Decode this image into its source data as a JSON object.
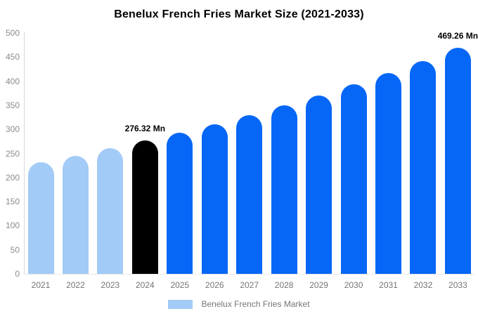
{
  "title": "Benelux French Fries Market Size (2021-2033)",
  "legend": {
    "label": "Benelux French Fries Market",
    "swatch_color": "#a3cbf7"
  },
  "colors": {
    "past_bars": "#a3cbf7",
    "highlight_bar": "#000000",
    "forecast_bars": "#0667f6",
    "axis_text": "#8c8c8c",
    "x_label_text": "#757575",
    "annotation_text": "#000000"
  },
  "chart_data": {
    "type": "bar",
    "title": "Benelux French Fries Market Size (2021-2033)",
    "categories": [
      "2021",
      "2022",
      "2023",
      "2024",
      "2025",
      "2026",
      "2027",
      "2028",
      "2029",
      "2030",
      "2031",
      "2032",
      "2033"
    ],
    "series": [
      {
        "name": "Benelux French Fries Market",
        "values": [
          231.6,
          245.6,
          260.5,
          276.32,
          293.1,
          310.8,
          329.7,
          349.7,
          370.8,
          393.3,
          417.2,
          442.4,
          469.26
        ]
      }
    ],
    "bar_colors": [
      "#a3cbf7",
      "#a3cbf7",
      "#a3cbf7",
      "#000000",
      "#0667f6",
      "#0667f6",
      "#0667f6",
      "#0667f6",
      "#0667f6",
      "#0667f6",
      "#0667f6",
      "#0667f6",
      "#0667f6"
    ],
    "annotations": [
      {
        "category": "2024",
        "text": "276.32 Mn"
      },
      {
        "category": "2033",
        "text": "469.26 Mn"
      }
    ],
    "unit": "Mn",
    "xlabel": "",
    "ylabel": "",
    "ylim": [
      0,
      500
    ],
    "yticks": [
      0,
      50,
      100,
      150,
      200,
      250,
      300,
      350,
      400,
      450,
      500
    ],
    "grid": false,
    "legend_position": "bottom"
  }
}
